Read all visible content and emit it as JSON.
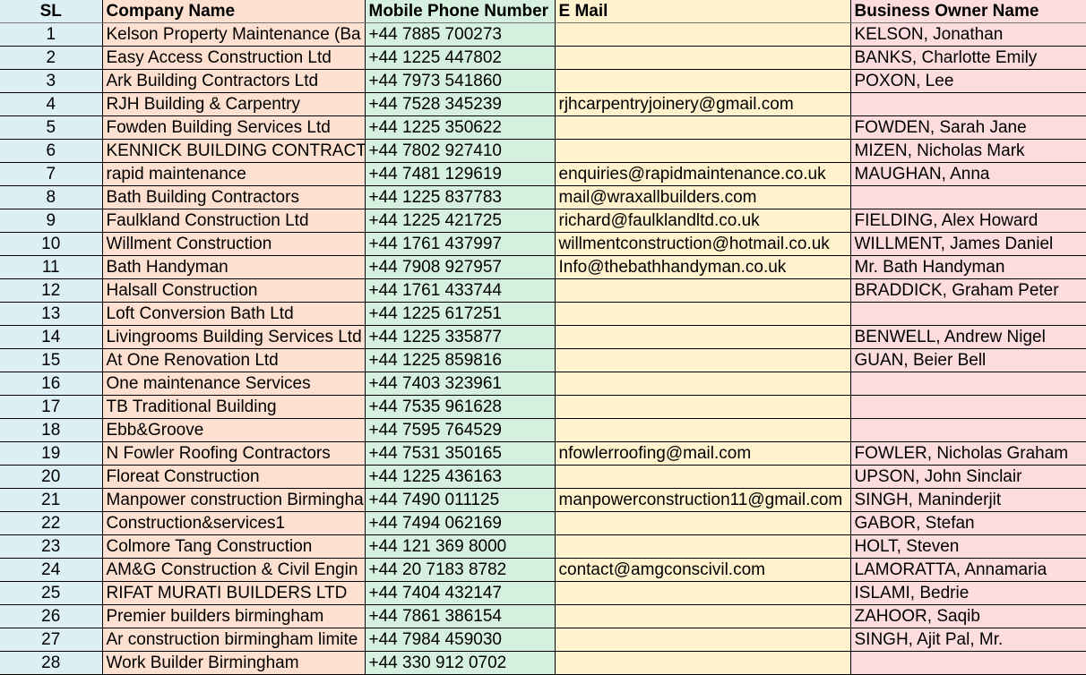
{
  "headers": {
    "sl": "SL",
    "company": "Company Name",
    "phone": "Mobile Phone Number",
    "email": "E Mail",
    "owner": "Business Owner Name"
  },
  "colors": {
    "sl": "#dbeff4",
    "company": "#fde0cf",
    "phone": "#d6f0e0",
    "email": "#fff2cc",
    "owner": "#fcdcdc"
  },
  "rows": [
    [
      "1",
      "Kelson Property Maintenance (Ba",
      "+44 7885 700273",
      "",
      "KELSON, Jonathan"
    ],
    [
      "2",
      "Easy Access Construction Ltd",
      "+44 1225 447802",
      "",
      "BANKS, Charlotte Emily"
    ],
    [
      "3",
      "Ark Building Contractors Ltd",
      "+44 7973 541860",
      "",
      "POXON, Lee"
    ],
    [
      "4",
      "RJH Building & Carpentry",
      "+44 7528 345239",
      "rjhcarpentryjoinery@gmail.com",
      ""
    ],
    [
      "5",
      "Fowden Building Services Ltd",
      "+44 1225 350622",
      "",
      "FOWDEN, Sarah Jane"
    ],
    [
      "6",
      "KENNICK BUILDING CONTRACT",
      "+44 7802 927410",
      "",
      "MIZEN, Nicholas Mark"
    ],
    [
      "7",
      "rapid maintenance",
      "+44 7481 129619",
      "enquiries@rapidmaintenance.co.uk",
      "MAUGHAN, Anna"
    ],
    [
      "8",
      "Bath Building Contractors",
      "+44 1225 837783",
      "mail@wraxallbuilders.com",
      ""
    ],
    [
      "9",
      "Faulkland Construction Ltd",
      "+44 1225 421725",
      "richard@faulklandltd.co.uk",
      "FIELDING, Alex Howard"
    ],
    [
      "10",
      "Willment Construction",
      "+44 1761 437997",
      "willmentconstruction@hotmail.co.uk",
      "WILLMENT, James Daniel"
    ],
    [
      "11",
      "Bath Handyman",
      "+44 7908 927957",
      "Info@thebathhandyman.co.uk",
      "Mr. Bath Handyman"
    ],
    [
      "12",
      "Halsall Construction",
      "+44 1761 433744",
      "",
      "BRADDICK, Graham Peter"
    ],
    [
      "13",
      "Loft Conversion Bath Ltd",
      "+44 1225 617251",
      "",
      ""
    ],
    [
      "14",
      "Livingrooms Building Services Ltd",
      "+44 1225 335877",
      "",
      "BENWELL, Andrew Nigel"
    ],
    [
      "15",
      "At One Renovation Ltd",
      "+44 1225 859816",
      "",
      "GUAN, Beier Bell"
    ],
    [
      "16",
      "One maintenance Services",
      "+44 7403 323961",
      "",
      ""
    ],
    [
      "17",
      "TB Traditional Building",
      "+44 7535 961628",
      "",
      ""
    ],
    [
      "18",
      "Ebb&Groove",
      "+44 7595 764529",
      "",
      ""
    ],
    [
      "19",
      "N Fowler Roofing Contractors",
      "+44 7531 350165",
      "nfowlerroofing@mail.com",
      "FOWLER, Nicholas Graham"
    ],
    [
      "20",
      "Floreat Construction",
      "+44 1225 436163",
      "",
      "UPSON, John Sinclair"
    ],
    [
      "21",
      "Manpower construction Birmingha",
      "+44 7490 011125",
      "manpowerconstruction11@gmail.com",
      "SINGH, Maninderjit"
    ],
    [
      "22",
      "Construction&services1",
      "+44 7494 062169",
      "",
      "GABOR, Stefan"
    ],
    [
      "23",
      "Colmore Tang Construction",
      "+44 121 369 8000",
      "",
      "HOLT, Steven"
    ],
    [
      "24",
      "AM&G Construction & Civil Engin",
      "+44 20 7183 8782",
      "contact@amgconscivil.com",
      "LAMORATTA, Annamaria"
    ],
    [
      "25",
      "RIFAT MURATI BUILDERS LTD",
      "+44 7404 432147",
      "",
      "ISLAMI, Bedrie"
    ],
    [
      "26",
      "Premier builders birmingham",
      "+44 7861 386154",
      "",
      "ZAHOOR, Saqib"
    ],
    [
      "27",
      "Ar construction birmingham limite",
      "+44 7984 459030",
      "",
      "SINGH, Ajit Pal, Mr."
    ],
    [
      "28",
      "Work Builder Birmingham",
      "+44 330 912 0702",
      "",
      ""
    ]
  ]
}
